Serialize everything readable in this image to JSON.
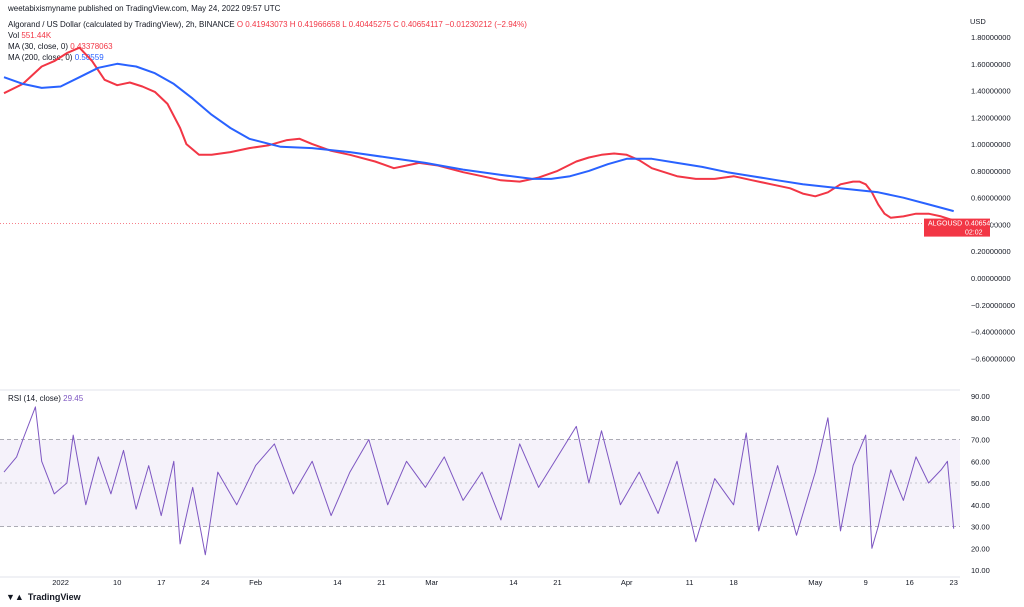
{
  "header": {
    "publish": "weetabixismyname published on TradingView.com, May 24, 2022 09:57 UTC",
    "symbol": "Algorand / US Dollar (calculated by TradingView), 2h, BINANCE",
    "ohlc": "O 0.41943073  H 0.41966658  L 0.40445275  C 0.40654117  −0.01230212 (−2.94%)",
    "vol_label": "Vol",
    "vol_value": "551.44K",
    "ma30_label": "MA (30, close, 0)",
    "ma30_value": "0.43378063",
    "ma200_label": "MA (200, close, 0)",
    "ma200_value": "0.50559",
    "rsi_label": "RSI (14, close)",
    "rsi_value": "29.45",
    "currency": "USD"
  },
  "price_tag": {
    "value": "0.40654117",
    "symbol": "ALGOUSD",
    "countdown": "02:02"
  },
  "footer": {
    "brand": "TradingView",
    "logo": "tv-logo-icon"
  },
  "colors": {
    "ma30": "#f23645",
    "ma200": "#2962ff",
    "rsi": "#7e57c2",
    "up": "#089981",
    "down": "#f23645",
    "price_tag": "#f23645"
  },
  "chart_data": [
    {
      "type": "line",
      "title": "Algorand / US Dollar (calculated by TradingView), 2h, BINANCE",
      "ylabel": "USD",
      "ylim": [
        -0.8,
        1.9
      ],
      "y_ticks": [
        "1.80000000",
        "1.60000000",
        "1.40000000",
        "1.20000000",
        "1.00000000",
        "0.80000000",
        "0.60000000",
        "0.40000000",
        "0.20000000",
        "0.00000000",
        "−0.20000000",
        "−0.40000000",
        "−0.60000000"
      ],
      "y_tick_values": [
        1.8,
        1.6,
        1.4,
        1.2,
        1.0,
        0.8,
        0.6,
        0.4,
        0.2,
        0.0,
        -0.2,
        -0.4,
        -0.6
      ],
      "x_ticks": [
        "2022",
        "10",
        "17",
        "24",
        "Feb",
        "14",
        "21",
        "Mar",
        "14",
        "21",
        "Apr",
        "11",
        "18",
        "May",
        "9",
        "16",
        "23"
      ],
      "x_tick_days": [
        0,
        9,
        16,
        23,
        31,
        44,
        51,
        59,
        72,
        79,
        90,
        100,
        107,
        120,
        128,
        135,
        142
      ],
      "x_range_days": [
        -9,
        143
      ],
      "series": [
        {
          "name": "MA (30, close, 0)",
          "x_days": [
            -9,
            -6,
            -3,
            -1,
            1,
            3,
            5,
            7,
            9,
            11,
            13,
            15,
            17,
            19,
            20,
            22,
            24,
            27,
            30,
            33,
            36,
            38,
            40,
            43,
            46,
            50,
            53,
            57,
            60,
            64,
            67,
            70,
            73,
            76,
            79,
            82,
            84,
            86,
            88,
            90,
            92,
            94,
            96,
            98,
            101,
            104,
            107,
            110,
            113,
            116,
            118,
            120,
            122,
            124,
            126,
            127,
            128,
            129,
            130,
            131,
            132,
            134,
            136,
            138,
            140,
            142
          ],
          "values": [
            1.38,
            1.45,
            1.58,
            1.62,
            1.68,
            1.72,
            1.62,
            1.48,
            1.44,
            1.46,
            1.43,
            1.39,
            1.3,
            1.12,
            1.0,
            0.92,
            0.92,
            0.94,
            0.97,
            0.99,
            1.03,
            1.04,
            1.0,
            0.95,
            0.92,
            0.87,
            0.82,
            0.86,
            0.84,
            0.79,
            0.76,
            0.73,
            0.72,
            0.75,
            0.8,
            0.87,
            0.9,
            0.92,
            0.93,
            0.92,
            0.88,
            0.82,
            0.79,
            0.76,
            0.74,
            0.74,
            0.76,
            0.73,
            0.7,
            0.67,
            0.63,
            0.61,
            0.64,
            0.7,
            0.72,
            0.72,
            0.7,
            0.64,
            0.55,
            0.48,
            0.45,
            0.46,
            0.48,
            0.48,
            0.46,
            0.43
          ]
        },
        {
          "name": "MA (200, close, 0)",
          "x_days": [
            -9,
            -6,
            -3,
            0,
            3,
            6,
            9,
            12,
            15,
            18,
            21,
            24,
            27,
            30,
            35,
            40,
            46,
            52,
            58,
            64,
            70,
            75,
            78,
            81,
            84,
            87,
            90,
            94,
            98,
            102,
            106,
            110,
            114,
            118,
            122,
            126,
            130,
            134,
            138,
            142
          ],
          "values": [
            1.5,
            1.45,
            1.42,
            1.43,
            1.5,
            1.57,
            1.6,
            1.58,
            1.53,
            1.45,
            1.34,
            1.22,
            1.12,
            1.04,
            0.98,
            0.97,
            0.94,
            0.9,
            0.86,
            0.81,
            0.77,
            0.74,
            0.74,
            0.76,
            0.8,
            0.85,
            0.89,
            0.89,
            0.86,
            0.83,
            0.79,
            0.76,
            0.73,
            0.7,
            0.68,
            0.66,
            0.64,
            0.6,
            0.55,
            0.5
          ]
        }
      ],
      "last_price": 0.40654117
    },
    {
      "type": "line",
      "title": "RSI (14, close)",
      "ylim": [
        8,
        92
      ],
      "y_ticks": [
        "90.00",
        "80.00",
        "70.00",
        "60.00",
        "50.00",
        "40.00",
        "30.00",
        "20.00",
        "10.00"
      ],
      "y_tick_values": [
        90,
        80,
        70,
        60,
        50,
        40,
        30,
        20,
        10
      ],
      "band": [
        30,
        70
      ],
      "middle": 50,
      "series": [
        {
          "name": "RSI (14, close)",
          "x_days": [
            -9,
            -7,
            -6,
            -4,
            -3,
            -1,
            1,
            2,
            4,
            6,
            8,
            10,
            12,
            14,
            16,
            18,
            19,
            21,
            23,
            25,
            28,
            31,
            34,
            37,
            40,
            43,
            46,
            49,
            52,
            55,
            58,
            61,
            64,
            67,
            70,
            73,
            76,
            79,
            82,
            84,
            86,
            89,
            92,
            95,
            98,
            101,
            104,
            107,
            109,
            111,
            114,
            117,
            120,
            122,
            124,
            126,
            128,
            129,
            130,
            132,
            134,
            136,
            138,
            140,
            141,
            142
          ],
          "values": [
            55,
            62,
            70,
            85,
            60,
            45,
            50,
            72,
            40,
            62,
            45,
            65,
            38,
            58,
            35,
            60,
            22,
            48,
            17,
            55,
            40,
            58,
            68,
            45,
            60,
            35,
            55,
            70,
            40,
            60,
            48,
            62,
            42,
            55,
            33,
            68,
            48,
            62,
            76,
            50,
            74,
            40,
            55,
            36,
            60,
            23,
            52,
            40,
            73,
            28,
            58,
            26,
            55,
            80,
            28,
            58,
            72,
            20,
            30,
            56,
            42,
            62,
            50,
            56,
            60,
            29
          ]
        }
      ]
    }
  ]
}
